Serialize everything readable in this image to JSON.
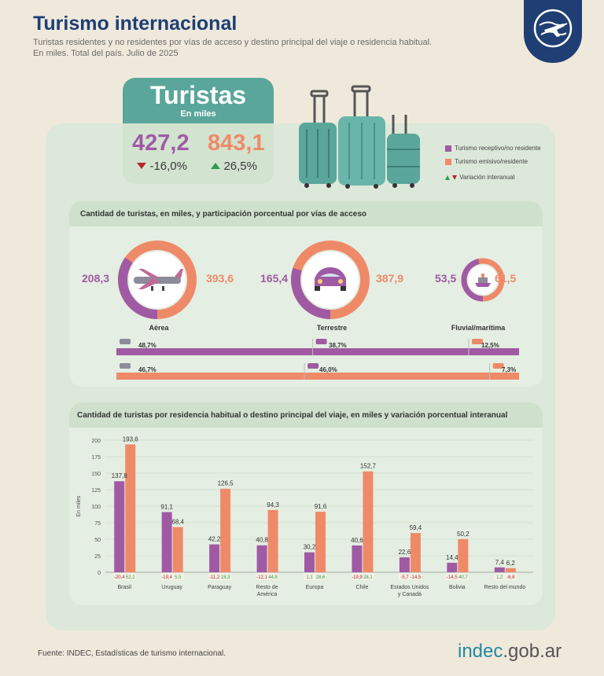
{
  "header": {
    "title": "Turismo internacional",
    "subtitle_line1": "Turistas residentes y no residentes por vías de acceso y destino principal del viaje o residencia habitual.",
    "subtitle_line2": "En miles. Total del país. Julio de 2025"
  },
  "summary": {
    "title": "Turistas",
    "unit": "En miles",
    "receptivo_value": "427,2",
    "receptivo_var": "-16,0%",
    "emisivo_value": "843,1",
    "emisivo_var": "26,5%"
  },
  "legend": {
    "receptivo": "Turismo receptivo/no residente",
    "emisivo": "Turismo emisivo/residente",
    "variacion": "Variación interanual"
  },
  "colors": {
    "receptivo": "#a05aa4",
    "emisivo": "#ef8a68",
    "navy": "#1f3e73",
    "teal": "#5aa69a",
    "up": "#2f9a52",
    "down": "#b4282a"
  },
  "access_panel": {
    "title": "Cantidad de turistas, en miles, y participación porcentual por vías de acceso",
    "items": [
      {
        "label": "Aérea",
        "receptivo": "208,3",
        "emisivo": "393,6",
        "icon": "airplane-icon"
      },
      {
        "label": "Terrestre",
        "receptivo": "165,4",
        "emisivo": "387,9",
        "icon": "car-icon"
      },
      {
        "label": "Fluvial/marítima",
        "receptivo": "53,5",
        "emisivo": "61,5",
        "icon": "ship-icon"
      }
    ],
    "share_receptivo": [
      "48,7%",
      "38,7%",
      "12,5%"
    ],
    "share_emisivo": [
      "46,7%",
      "46,0%",
      "7,3%"
    ]
  },
  "chart_data": {
    "type": "bar",
    "title": "Cantidad de turistas por residencia habitual o destino principal del viaje, en miles y variación porcentual interanual",
    "ylabel": "En miles",
    "ylim": [
      0,
      200
    ],
    "yticks": [
      "0",
      "25",
      "50",
      "75",
      "100",
      "125",
      "150",
      "175",
      "200"
    ],
    "categories": [
      "Brasil",
      "Uruguay",
      "Paraguay",
      "Resto de América",
      "Europa",
      "Chile",
      "Estados Unidos y Canadá",
      "Bolivia",
      "Resto del mundo"
    ],
    "category_lines": [
      [
        "Brasil"
      ],
      [
        "Uruguay"
      ],
      [
        "Paraguay"
      ],
      [
        "Resto de",
        "América"
      ],
      [
        "Europa"
      ],
      [
        "Chile"
      ],
      [
        "Estados Unidos",
        "y Canadá"
      ],
      [
        "Bolivia"
      ],
      [
        "Resto del mundo"
      ]
    ],
    "series": [
      {
        "name": "Turismo receptivo/no residente",
        "values": [
          137.8,
          91.1,
          42.2,
          40.8,
          30.2,
          40.6,
          22.6,
          14.4,
          7.4
        ],
        "labels": [
          "137,8",
          "91,1",
          "42,2",
          "40,8",
          "30,2",
          "40,6",
          "22,6",
          "14,4",
          "7,4"
        ],
        "variation": [
          "-20,4",
          "-19,4",
          "-11,2",
          "-12,1",
          "1,1",
          "-19,9",
          "-5,7",
          "-14,5",
          "1,2"
        ]
      },
      {
        "name": "Turismo emisivo/residente",
        "values": [
          193.6,
          68.4,
          126.5,
          94.3,
          91.6,
          152.7,
          59.4,
          50.2,
          6.2
        ],
        "labels": [
          "193,6",
          "68,4",
          "126,5",
          "94,3",
          "91,6",
          "152,7",
          "59,4",
          "50,2",
          "6,2"
        ],
        "variation": [
          "52,1",
          "5,5",
          "18,3",
          "44,8",
          "28,6",
          "28,1",
          "-14,5",
          "40,7",
          "-6,8"
        ]
      }
    ]
  },
  "footer": {
    "source": "Fuente: INDEC, Estadísticas de turismo internacional.",
    "logo_main": "indec",
    "logo_suffix": ".gob.ar"
  }
}
